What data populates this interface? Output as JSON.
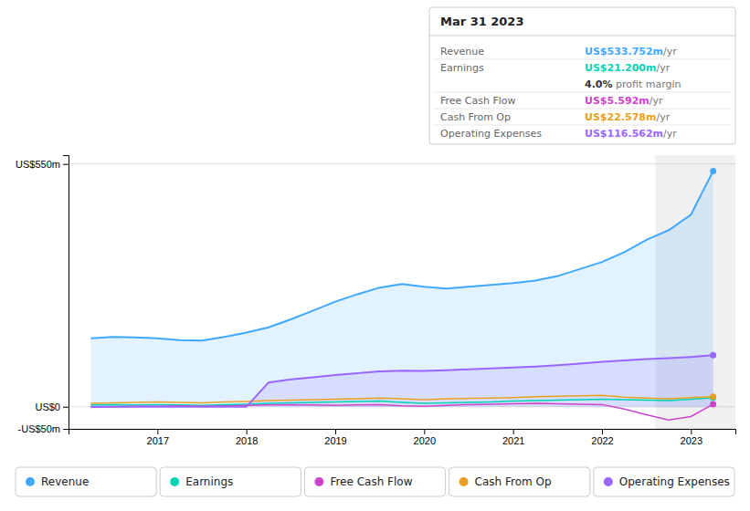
{
  "chart_data": {
    "type": "line",
    "x": [
      2016.25,
      2016.5,
      2016.75,
      2017.0,
      2017.25,
      2017.5,
      2017.75,
      2018.0,
      2018.25,
      2018.5,
      2018.75,
      2019.0,
      2019.25,
      2019.5,
      2019.75,
      2020.0,
      2020.25,
      2020.5,
      2020.75,
      2021.0,
      2021.25,
      2021.5,
      2021.75,
      2022.0,
      2022.25,
      2022.5,
      2022.75,
      2023.0,
      2023.25
    ],
    "xlim": [
      2016.0,
      2023.5
    ],
    "xticks": [
      2017,
      2018,
      2019,
      2020,
      2021,
      2022,
      2023
    ],
    "ylim": [
      -50,
      570
    ],
    "yticks": [
      {
        "value": -50,
        "label": "-US$50m"
      },
      {
        "value": 0,
        "label": "US$0"
      },
      {
        "value": 550,
        "label": "US$550m"
      }
    ],
    "grid": true,
    "legend": "bottom",
    "highlight_range": [
      2022.6,
      2023.5
    ],
    "series": [
      {
        "name": "Revenue",
        "color": "#3fa8ff",
        "type": "area",
        "values": [
          155,
          158,
          157,
          155,
          151,
          150,
          158,
          168,
          180,
          198,
          218,
          238,
          255,
          270,
          278,
          272,
          268,
          272,
          276,
          280,
          286,
          296,
          312,
          328,
          350,
          378,
          400,
          435,
          534
        ]
      },
      {
        "name": "Earnings",
        "color": "#00d4b4",
        "type": "line",
        "values": [
          4,
          5,
          4,
          5,
          4,
          3,
          5,
          6,
          8,
          9,
          10,
          11,
          12,
          13,
          10,
          8,
          9,
          10,
          11,
          13,
          14,
          15,
          16,
          17,
          16,
          15,
          14,
          17,
          21
        ]
      },
      {
        "name": "Free Cash Flow",
        "color": "#cc44cc",
        "type": "line",
        "values": [
          -1,
          0,
          1,
          1,
          2,
          1,
          2,
          3,
          4,
          5,
          4,
          3,
          4,
          5,
          2,
          1,
          3,
          5,
          6,
          7,
          8,
          7,
          6,
          5,
          -5,
          -18,
          -30,
          -22,
          6
        ]
      },
      {
        "name": "Cash From Op",
        "color": "#e8a020",
        "type": "line",
        "values": [
          8,
          9,
          10,
          11,
          10,
          9,
          11,
          12,
          14,
          15,
          16,
          17,
          18,
          20,
          18,
          16,
          18,
          19,
          20,
          21,
          23,
          24,
          25,
          26,
          22,
          20,
          18,
          21,
          23
        ]
      },
      {
        "name": "Operating Expenses",
        "color": "#9966ff",
        "type": "area",
        "values": [
          0,
          0,
          0,
          0,
          0,
          0,
          0,
          0,
          55,
          62,
          67,
          72,
          76,
          80,
          82,
          81,
          83,
          85,
          87,
          89,
          91,
          94,
          98,
          102,
          105,
          108,
          110,
          113,
          117
        ]
      }
    ],
    "annotation_box": {
      "title": "Mar 31 2023",
      "rows": [
        {
          "label": "Revenue",
          "value": "US$533.752m",
          "suffix": "/yr",
          "color": "#3fa8ff"
        },
        {
          "label": "Earnings",
          "value": "US$21.200m",
          "suffix": "/yr",
          "color": "#00d4b4"
        },
        {
          "value": "4.0%",
          "suffix": " profit margin",
          "color": "#333333"
        },
        {
          "label": "Free Cash Flow",
          "value": "US$5.592m",
          "suffix": "/yr",
          "color": "#cc44cc"
        },
        {
          "label": "Cash From Op",
          "value": "US$22.578m",
          "suffix": "/yr",
          "color": "#e8a020"
        },
        {
          "label": "Operating Expenses",
          "value": "US$116.562m",
          "suffix": "/yr",
          "color": "#9966ff"
        }
      ]
    }
  }
}
